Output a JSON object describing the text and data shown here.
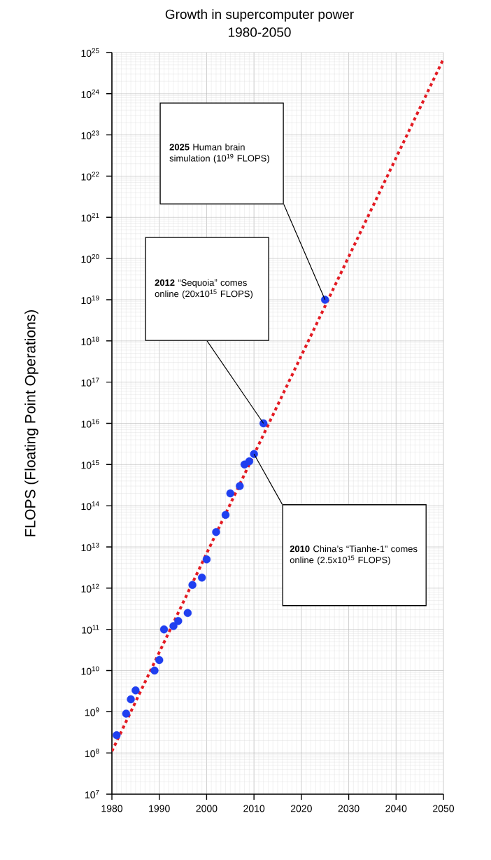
{
  "chart_data": {
    "type": "scatter",
    "title": "Growth in supercomputer power",
    "subtitle": "1980-2050",
    "ylabel": "FLOPS (Floating Point Operations)",
    "log": "y",
    "grid": true,
    "xlim": [
      1980,
      2050
    ],
    "xticks": [
      1980,
      1990,
      2000,
      2010,
      2020,
      2030,
      2040,
      2050
    ],
    "ylim": [
      10000000.0,
      1e+25
    ],
    "yticks": [
      {
        "value": 10000000.0,
        "label": "10$^{7}$"
      },
      {
        "value": 100000000.0,
        "label": "10$^{8}$"
      },
      {
        "value": 1000000000.0,
        "label": "10$^{9}$"
      },
      {
        "value": 10000000000.0,
        "label": "10$^{10}$"
      },
      {
        "value": 100000000000.0,
        "label": "10$^{11}$"
      },
      {
        "value": 1000000000000.0,
        "label": "10$^{12}$"
      },
      {
        "value": 10000000000000.0,
        "label": "10$^{13}$"
      },
      {
        "value": 100000000000000.0,
        "label": "10$^{14}$"
      },
      {
        "value": 1000000000000000.0,
        "label": "10$^{15}$"
      },
      {
        "value": 1e+16,
        "label": "10$^{16}$"
      },
      {
        "value": 1e+17,
        "label": "10$^{17}$"
      },
      {
        "value": 1e+18,
        "label": "10$^{18}$"
      },
      {
        "value": 1e+19,
        "label": "10$^{19}$"
      },
      {
        "value": 1e+20,
        "label": "10$^{20}$"
      },
      {
        "value": 1e+21,
        "label": "10$^{21}$"
      },
      {
        "value": 1e+22,
        "label": "10$^{22}$"
      },
      {
        "value": 1e+23,
        "label": "10$^{23}$"
      },
      {
        "value": 1e+24,
        "label": "10$^{24}$"
      },
      {
        "value": 1e+25,
        "label": "10$^{25}$"
      }
    ],
    "series": [
      {
        "type": "line",
        "color": "#e31b23",
        "line_style": "dotted",
        "x": [
          1980,
          2050
        ],
        "values": [
          110000000.0,
          7e+24
        ]
      },
      {
        "marker": "circle",
        "color": "#1f3ff0",
        "x": [
          1981,
          1983,
          1984,
          1985,
          1989,
          1990,
          1991,
          1993,
          1994,
          1996,
          1997,
          1999,
          2000,
          2002,
          2004,
          2005,
          2007,
          2008,
          2009,
          2010,
          2012,
          2025
        ],
        "values": [
          270000000.0,
          900000000.0,
          2000000000.0,
          3300000000.0,
          10000000000.0,
          18000000000.0,
          100000000000.0,
          120000000000.0,
          160000000000.0,
          250000000000.0,
          1200000000000.0,
          1800000000000.0,
          5000000000000.0,
          23000000000000.0,
          60000000000000.0,
          200000000000000.0,
          300000000000000.0,
          1000000000000000.0,
          1200000000000000.0,
          1800000000000000.0,
          1e+16,
          1e+19
        ]
      }
    ],
    "annotations": [
      "**2025** Human brain simulation (10$^{19}$ FLOPS)",
      "**2012** “Sequoia” comes online (20x10$^{15}$ FLOPS)",
      "**2010** China’s “Tianhe-1” comes online (2.5x10$^{15}$ FLOPS)"
    ]
  }
}
